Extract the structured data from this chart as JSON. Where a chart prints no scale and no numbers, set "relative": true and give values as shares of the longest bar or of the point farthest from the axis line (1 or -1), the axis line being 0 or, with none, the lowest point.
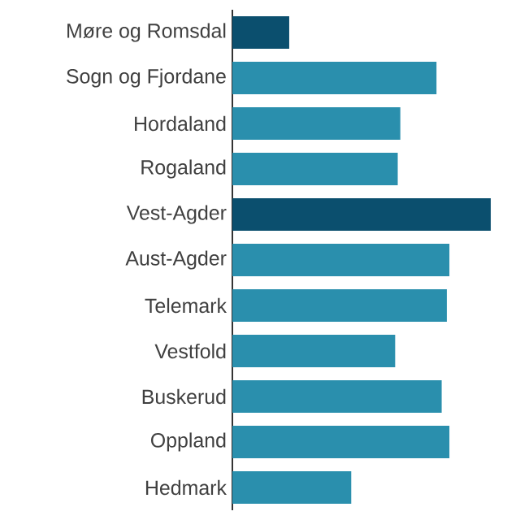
{
  "chart_data": {
    "type": "bar",
    "orientation": "horizontal",
    "relative": true,
    "categories": [
      "Møre og Romsdal",
      "Sogn og Fjordane",
      "Hordaland",
      "Rogaland",
      "Vest-Agder",
      "Aust-Agder",
      "Telemark",
      "Vestfold",
      "Buskerud",
      "Oppland",
      "Hedmark"
    ],
    "values": [
      0.22,
      0.79,
      0.65,
      0.64,
      1,
      0.84,
      0.83,
      0.63,
      0.81,
      0.84,
      0.46
    ],
    "colors": [
      "#0b4f6e",
      "#2a8fad",
      "#2a8fad",
      "#2a8fad",
      "#0b4f6e",
      "#2a8fad",
      "#2a8fad",
      "#2a8fad",
      "#2a8fad",
      "#2a8fad",
      "#2a8fad"
    ]
  }
}
